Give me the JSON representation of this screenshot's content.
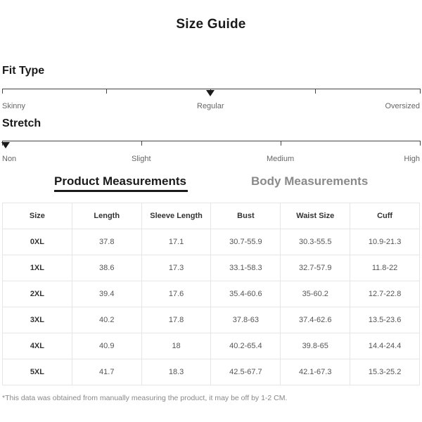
{
  "page": {
    "title": "Size Guide"
  },
  "fit_type": {
    "title": "Fit Type",
    "labels": [
      "Skinny",
      "Regular",
      "Oversized"
    ],
    "selected": "Regular"
  },
  "stretch": {
    "title": "Stretch",
    "labels": [
      "Non",
      "Slight",
      "Medium",
      "High"
    ],
    "selected": "Non"
  },
  "tabs": [
    {
      "label": "Product Measurements",
      "active": true
    },
    {
      "label": "Body Measurements",
      "active": false
    }
  ],
  "table": {
    "headers": [
      "Size",
      "Length",
      "Sleeve Length",
      "Bust",
      "Waist Size",
      "Cuff"
    ],
    "rows": [
      [
        "0XL",
        "37.8",
        "17.1",
        "30.7-55.9",
        "30.3-55.5",
        "10.9-21.3"
      ],
      [
        "1XL",
        "38.6",
        "17.3",
        "33.1-58.3",
        "32.7-57.9",
        "11.8-22"
      ],
      [
        "2XL",
        "39.4",
        "17.6",
        "35.4-60.6",
        "35-60.2",
        "12.7-22.8"
      ],
      [
        "3XL",
        "40.2",
        "17.8",
        "37.8-63",
        "37.4-62.6",
        "13.5-23.6"
      ],
      [
        "4XL",
        "40.9",
        "18",
        "40.2-65.4",
        "39.8-65",
        "14.4-24.4"
      ],
      [
        "5XL",
        "41.7",
        "18.3",
        "42.5-67.7",
        "42.1-67.3",
        "15.3-25.2"
      ]
    ]
  },
  "footnote": "*This data was obtained from manually measuring the product, it may be off by 1-2 CM."
}
